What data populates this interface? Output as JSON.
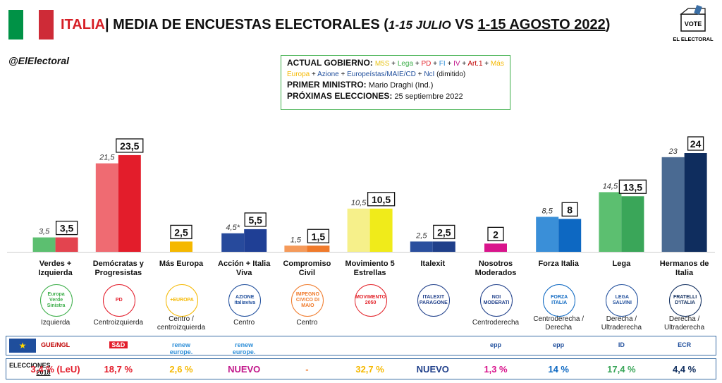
{
  "header": {
    "country": "ITALIA",
    "separator": "|",
    "title_main": "MEDIA DE ENCUESTAS ELECTORALES (",
    "period_1": "1-15 JULIO",
    "vs": " VS ",
    "period_2": "1-15 AGOSTO 2022",
    "close": ")",
    "handle": "@ElElectoral",
    "logo_text": "VOTE",
    "logo_caption": "EL ELECTORAL",
    "flag_colors": [
      "#009246",
      "#ffffff",
      "#ce2b37"
    ]
  },
  "government": {
    "label": "ACTUAL GOBIERNO:",
    "parties": [
      {
        "name": "M5S",
        "color": "#e8c41a"
      },
      {
        "name": "Lega",
        "color": "#3cae49"
      },
      {
        "name": "PD",
        "color": "#e3242b"
      },
      {
        "name": "FI",
        "color": "#2f8fd8"
      },
      {
        "name": "IV",
        "color": "#c2188b"
      },
      {
        "name": "Art.1",
        "color": "#c00000"
      },
      {
        "name": "Más Europa",
        "color": "#f5b800"
      },
      {
        "name": "Azione",
        "color": "#1f4e9c"
      },
      {
        "name": "Europeístas/MAIE/CD",
        "color": "#1f4e9c"
      },
      {
        "name": "NcI",
        "color": "#1f4e9c"
      }
    ],
    "ncl_note": "(dimitido)",
    "pm_label": "PRIMER MINISTRO:",
    "pm_value": "Mario Draghi (Ind.)",
    "next_label": "PRÓXIMAS ELECCIONES:",
    "next_value": "25 septiembre 2022"
  },
  "chart_data": {
    "type": "bar",
    "title": "MEDIA DE ENCUESTAS ELECTORALES (1-15 JULIO VS 1-15 AGOSTO 2022)",
    "categories": [
      "Verdes + Izquierda",
      "Demócratas y Progresistas",
      "Más Europa",
      "Acción + Italia Viva",
      "Compromiso Civil",
      "Movimiento 5 Estrellas",
      "Italexit",
      "Nosotros Moderados",
      "Forza Italia",
      "Lega",
      "Hermanos de Italia"
    ],
    "series": [
      {
        "name": "1-15 JULIO",
        "values": [
          3.5,
          21.5,
          null,
          4.5,
          1.5,
          10.5,
          2.5,
          null,
          8.5,
          14.5,
          23
        ]
      },
      {
        "name": "1-15 AGOSTO 2022",
        "values": [
          3.5,
          23.5,
          2.5,
          5.5,
          1.5,
          10.5,
          2.5,
          2,
          8,
          13.5,
          24
        ]
      }
    ],
    "labels_prev": [
      "3,5",
      "21,5",
      "",
      "4,5*",
      "1,5",
      "10,5",
      "2,5",
      "",
      "8,5",
      "14,5",
      "23"
    ],
    "labels_curr": [
      "3,5",
      "23,5",
      "2,5",
      "5,5",
      "1,5",
      "10,5",
      "2,5",
      "2",
      "8",
      "13,5",
      "24"
    ],
    "colors_prev": [
      "#5cbf70",
      "#ef6b72",
      "",
      "#274a9c",
      "#f59a5a",
      "#f6f08a",
      "#2a4f9e",
      "",
      "#3a8fd8",
      "#5cbf70",
      "#4a6a92"
    ],
    "colors_curr": [
      "#e3444f",
      "#e31d2b",
      "#f5b800",
      "#1f3f95",
      "#f07a2a",
      "#f0eb1a",
      "#1f3f8a",
      "#d9148c",
      "#0d68c2",
      "#3aa659",
      "#0f2d5e"
    ],
    "ylim": [
      0,
      24
    ],
    "grid": false
  },
  "parties": [
    {
      "name": "Verdes + Izquierda",
      "ideology": "Izquierda",
      "logo": "Europa Verde Sinistra",
      "logo_color": "#3cae49"
    },
    {
      "name": "Demócratas y Progresistas",
      "ideology": "Centroizquierda",
      "logo": "PD",
      "logo_color": "#e31d2b"
    },
    {
      "name": "Más Europa",
      "ideology": "Centro / centroizquierda",
      "logo": "+EUROPA",
      "logo_color": "#f5b800"
    },
    {
      "name": "Acción + Italia Viva",
      "ideology": "Centro",
      "logo": "AZIONE italiaviva",
      "logo_color": "#1f4e9c"
    },
    {
      "name": "Compromiso Civil",
      "ideology": "Centro",
      "logo": "IMPEGNO CIVICO DI MAIO",
      "logo_color": "#f07a2a"
    },
    {
      "name": "Movimiento 5 Estrellas",
      "ideology": "",
      "logo": "MOVIMENTO 2050",
      "logo_color": "#e3242b"
    },
    {
      "name": "Italexit",
      "ideology": "",
      "logo": "ITALEXIT PARAGONE",
      "logo_color": "#1f3f8a"
    },
    {
      "name": "Nosotros Moderados",
      "ideology": "Centroderecha",
      "logo": "NOI MODERATI",
      "logo_color": "#1f3f8a"
    },
    {
      "name": "Forza Italia",
      "ideology": "Centroderecha / Derecha",
      "logo": "FORZA ITALIA",
      "logo_color": "#0d68c2"
    },
    {
      "name": "Lega",
      "ideology": "Derecha / Ultraderecha",
      "logo": "LEGA SALVINI",
      "logo_color": "#1f4e9c"
    },
    {
      "name": "Hermanos de Italia",
      "ideology": "Derecha / Ultraderecha",
      "logo": "FRATELLI D'ITALIA",
      "logo_color": "#0f2d5e"
    }
  ],
  "eu_groups": [
    "GUE/NGL",
    "S&D",
    "renew europe.",
    "renew europe.",
    "",
    "",
    "",
    "epp",
    "epp",
    "ID",
    "ECR"
  ],
  "elections_2018": {
    "label_1": "ELECCIONES",
    "label_2": "2018",
    "values": [
      "3,4 % (LeU)",
      "18,7 %",
      "2,6 %",
      "NUEVO",
      "-",
      "32,7 %",
      "NUEVO",
      "1,3 %",
      "14 %",
      "17,4 %",
      "4,4 %"
    ],
    "colors": [
      "#e31d2b",
      "#e31d2b",
      "#f5b800",
      "#c2188b",
      "#f07a2a",
      "#f5b800",
      "#1f3f8a",
      "#d9148c",
      "#0d68c2",
      "#3aa659",
      "#0f2d5e"
    ]
  }
}
